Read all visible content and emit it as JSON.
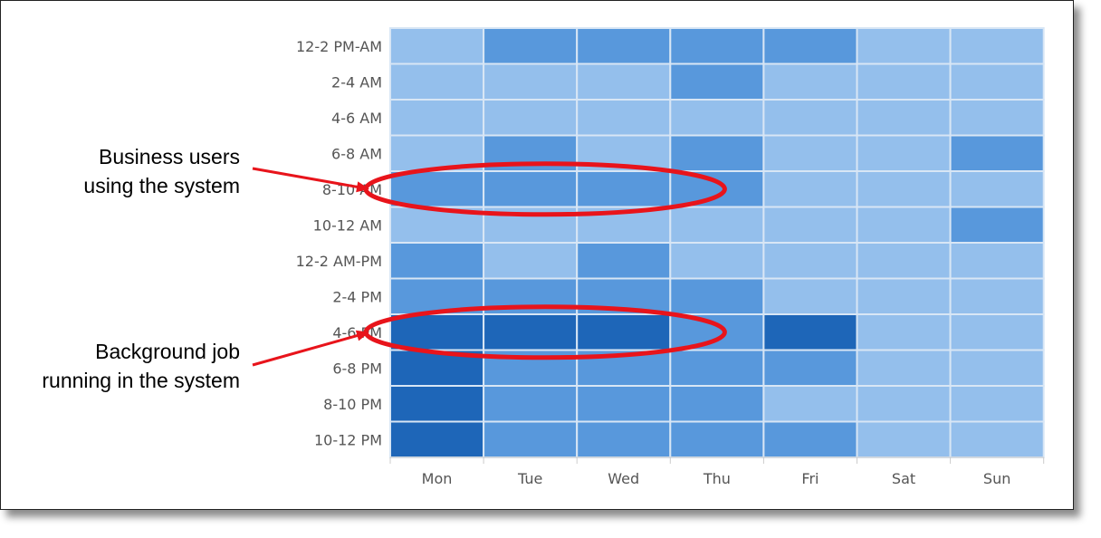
{
  "chart_data": {
    "type": "heatmap",
    "x_categories": [
      "Mon",
      "Tue",
      "Wed",
      "Thu",
      "Fri",
      "Sat",
      "Sun"
    ],
    "y_categories": [
      "12-2 PM-AM",
      "2-4 AM",
      "4-6 AM",
      "6-8 AM",
      "8-10 AM",
      "10-12 AM",
      "12-2 AM-PM",
      "2-4 PM",
      "4-6 PM",
      "6-8 PM",
      "8-10 PM",
      "10-12 PM"
    ],
    "values": [
      [
        1,
        2,
        2,
        2,
        2,
        1,
        1
      ],
      [
        1,
        1,
        1,
        2,
        1,
        1,
        1
      ],
      [
        1,
        1,
        1,
        1,
        1,
        1,
        1
      ],
      [
        1,
        2,
        1,
        2,
        1,
        1,
        2
      ],
      [
        2,
        2,
        2,
        2,
        1,
        1,
        1
      ],
      [
        1,
        1,
        1,
        1,
        1,
        1,
        2
      ],
      [
        2,
        1,
        2,
        1,
        1,
        1,
        1
      ],
      [
        2,
        2,
        2,
        2,
        1,
        1,
        1
      ],
      [
        3,
        3,
        3,
        2,
        3,
        1,
        1
      ],
      [
        3,
        2,
        2,
        2,
        2,
        1,
        1
      ],
      [
        3,
        2,
        2,
        2,
        1,
        1,
        1
      ],
      [
        3,
        2,
        2,
        2,
        2,
        1,
        1
      ]
    ],
    "colors": {
      "1": "#94bfec",
      "2": "#5898dc",
      "3": "#1e66b8"
    },
    "grid_color": "#d8e6f5",
    "annotations": [
      {
        "text_lines": [
          "Business users",
          "using the system"
        ],
        "row": "8-10 AM",
        "col_start": "Mon",
        "col_end": "Thu"
      },
      {
        "text_lines": [
          "Background job",
          "running in the system"
        ],
        "row": "4-6 PM",
        "col_start": "Mon",
        "col_end": "Thu"
      }
    ],
    "annotation_color": "#e8141b"
  }
}
